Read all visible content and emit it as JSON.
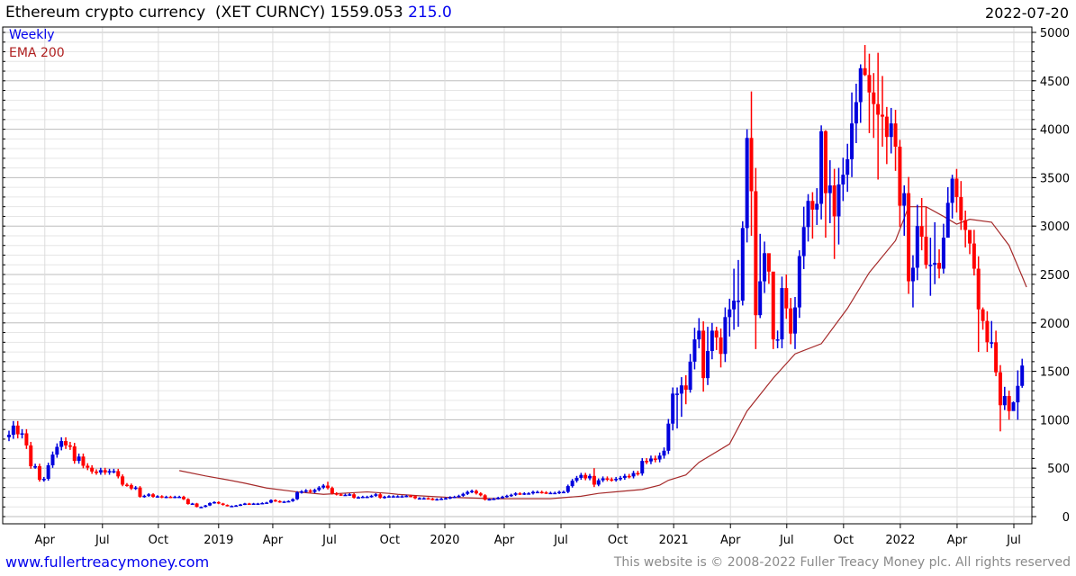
{
  "header": {
    "title": "Ethereum crypto currency  (XET CURNCY) 1559.053",
    "change": "215.0",
    "date": "2022-07-20"
  },
  "legend": {
    "weekly": "Weekly",
    "ema": "EMA 200"
  },
  "footer": {
    "link": "www.fullertreacymoney.com",
    "copyright": "This website is © 2008-2022 Fuller Treacy Money plc. All rights reserved"
  },
  "colors": {
    "up": "#0000dd",
    "down": "#ff0000",
    "ema": "#a52a2a",
    "grid_major": "#bdbdbd",
    "grid_minor": "#e6e6e6"
  },
  "chart_data": {
    "type": "candlestick",
    "title": "Ethereum crypto currency (XET CURNCY)",
    "x_unit": "weeks since first bar",
    "ylim": [
      0,
      5000
    ],
    "y_ticks": [
      0,
      500,
      1000,
      1500,
      2000,
      2500,
      3000,
      3500,
      4000,
      4500,
      5000
    ],
    "x_ticks": [
      {
        "label": "Apr",
        "week": 8.2
      },
      {
        "label": "Jul",
        "week": 21.4
      },
      {
        "label": "Oct",
        "week": 34.2
      },
      {
        "label": "2019",
        "week": 48
      },
      {
        "label": "Apr",
        "week": 60.4
      },
      {
        "label": "Jul",
        "week": 73.4
      },
      {
        "label": "Oct",
        "week": 87.2
      },
      {
        "label": "2020",
        "week": 99.8
      },
      {
        "label": "Apr",
        "week": 113.4
      },
      {
        "label": "Jul",
        "week": 126.4
      },
      {
        "label": "Oct",
        "week": 139.4
      },
      {
        "label": "2021",
        "week": 152.2
      },
      {
        "label": "Apr",
        "week": 165.2
      },
      {
        "label": "Jul",
        "week": 178.1
      },
      {
        "label": "Oct",
        "week": 191.1
      },
      {
        "label": "2022",
        "week": 204.1
      },
      {
        "label": "Apr",
        "week": 217.1
      },
      {
        "label": "Jul",
        "week": 230.1
      }
    ],
    "first_open": 820,
    "close": [
      845,
      940,
      850,
      860,
      735,
      520,
      520,
      380,
      390,
      530,
      640,
      720,
      780,
      735,
      725,
      575,
      620,
      525,
      505,
      465,
      455,
      480,
      455,
      470,
      470,
      415,
      330,
      325,
      290,
      300,
      205,
      215,
      230,
      205,
      210,
      200,
      205,
      200,
      205,
      205,
      180,
      130,
      135,
      100,
      100,
      115,
      140,
      150,
      135,
      120,
      110,
      110,
      115,
      125,
      135,
      130,
      135,
      135,
      140,
      145,
      170,
      160,
      150,
      155,
      160,
      180,
      250,
      260,
      270,
      255,
      275,
      300,
      320,
      295,
      240,
      230,
      225,
      225,
      230,
      195,
      200,
      205,
      205,
      215,
      230,
      195,
      205,
      210,
      210,
      210,
      210,
      215,
      210,
      190,
      190,
      190,
      185,
      175,
      180,
      185,
      190,
      200,
      205,
      215,
      235,
      255,
      265,
      240,
      220,
      175,
      180,
      185,
      195,
      205,
      215,
      225,
      240,
      235,
      240,
      240,
      255,
      255,
      250,
      245,
      245,
      245,
      255,
      255,
      315,
      370,
      400,
      430,
      395,
      420,
      330,
      375,
      395,
      385,
      380,
      390,
      400,
      420,
      415,
      450,
      445,
      575,
      570,
      600,
      590,
      630,
      680,
      960,
      1270,
      1270,
      1355,
      1310,
      1600,
      1830,
      1920,
      1430,
      1710,
      1920,
      1850,
      1680,
      2060,
      2140,
      2230,
      2230,
      2980,
      3910,
      3360,
      2080,
      2430,
      2720,
      2530,
      1830,
      1830,
      2360,
      2150,
      1890,
      2160,
      2690,
      2990,
      3260,
      3170,
      3230,
      3980,
      3340,
      3420,
      3100,
      3430,
      3530,
      3690,
      4060,
      4280,
      4630,
      4560,
      4380,
      4260,
      4150,
      4130,
      3920,
      4060,
      3820,
      3210,
      3340,
      2430,
      2570,
      3000,
      2890,
      2600,
      2600,
      2620,
      2560,
      2880,
      3240,
      3490,
      3300,
      3060,
      2960,
      2820,
      2560,
      2140,
      2020,
      1800,
      1800,
      1490,
      1150,
      1245,
      1090,
      1180,
      1350,
      1560
    ],
    "default_wick_pct": 0.05,
    "high_overrides": {
      "73": 360,
      "134": 500,
      "154": 1440,
      "155": 1460,
      "157": 1950,
      "158": 2050,
      "160": 1960,
      "161": 2000,
      "162": 1960,
      "164": 2160,
      "165": 2250,
      "166": 2560,
      "167": 2650,
      "168": 3050,
      "169": 4000,
      "170": 4390,
      "171": 3600,
      "172": 2920,
      "173": 2840,
      "174": 2700,
      "175": 2520,
      "178": 2500,
      "181": 2750,
      "182": 3200,
      "183": 3330,
      "184": 3350,
      "186": 4040,
      "187": 3990,
      "188": 3680,
      "192": 3850,
      "193": 4380,
      "194": 4470,
      "195": 4670,
      "196": 4870,
      "197": 4780,
      "198": 4580,
      "199": 4790,
      "200": 4550,
      "201": 4230,
      "202": 4220,
      "203": 4200,
      "204": 3890,
      "205": 3420,
      "208": 3220,
      "209": 3290,
      "210": 3200,
      "211": 2880,
      "212": 3040,
      "213": 2760,
      "216": 3530,
      "217": 3590,
      "219": 3160,
      "220": 2950,
      "223": 2160,
      "225": 2020,
      "226": 1920,
      "228": 1340,
      "229": 1300,
      "230": 1190,
      "231": 1510,
      "232": 1630
    },
    "low_overrides": {
      "134": 305,
      "152": 890,
      "153": 910,
      "154": 1030,
      "155": 1160,
      "156": 1280,
      "159": 1290,
      "162": 1720,
      "163": 1540,
      "165": 1860,
      "166": 1930,
      "167": 1960,
      "168": 2180,
      "170": 2900,
      "171": 1730,
      "172": 2050,
      "175": 1730,
      "179": 1780,
      "180": 1730,
      "184": 2870,
      "187": 2880,
      "188": 3030,
      "189": 2660,
      "190": 2810,
      "196": 4550,
      "197": 3960,
      "198": 3910,
      "199": 3480,
      "200": 3820,
      "201": 3640,
      "202": 3750,
      "203": 3570,
      "204": 2990,
      "205": 2900,
      "206": 2300,
      "207": 2160,
      "209": 2750,
      "210": 2560,
      "211": 2280,
      "212": 2400,
      "213": 2460,
      "214": 2510,
      "215": 3000,
      "217": 3140,
      "218": 2960,
      "219": 2780,
      "220": 2710,
      "221": 2490,
      "222": 1700,
      "223": 1930,
      "224": 1700,
      "225": 1740,
      "226": 1450,
      "227": 880,
      "228": 1100,
      "229": 1000,
      "230": 1110,
      "231": 1000,
      "232": 1330
    },
    "series": [
      {
        "name": "EMA 200",
        "points": [
          [
            39,
            475
          ],
          [
            45,
            420
          ],
          [
            50,
            380
          ],
          [
            54,
            345
          ],
          [
            59,
            295
          ],
          [
            66,
            255
          ],
          [
            72,
            230
          ],
          [
            76,
            240
          ],
          [
            82,
            255
          ],
          [
            87,
            240
          ],
          [
            89,
            230
          ],
          [
            94,
            215
          ],
          [
            100,
            200
          ],
          [
            111,
            185
          ],
          [
            119,
            185
          ],
          [
            124,
            185
          ],
          [
            128,
            200
          ],
          [
            131,
            210
          ],
          [
            135,
            240
          ],
          [
            140,
            260
          ],
          [
            145,
            280
          ],
          [
            149,
            325
          ],
          [
            151,
            375
          ],
          [
            155,
            430
          ],
          [
            158,
            560
          ],
          [
            165,
            750
          ],
          [
            169,
            1090
          ],
          [
            175,
            1430
          ],
          [
            180,
            1680
          ],
          [
            186,
            1785
          ],
          [
            192,
            2150
          ],
          [
            197,
            2520
          ],
          [
            203,
            2850
          ],
          [
            206,
            3200
          ],
          [
            210,
            3200
          ],
          [
            214,
            3100
          ],
          [
            217,
            3020
          ],
          [
            220,
            3070
          ],
          [
            225,
            3040
          ],
          [
            229,
            2800
          ],
          [
            232,
            2480
          ],
          [
            233,
            2370
          ]
        ]
      }
    ]
  }
}
